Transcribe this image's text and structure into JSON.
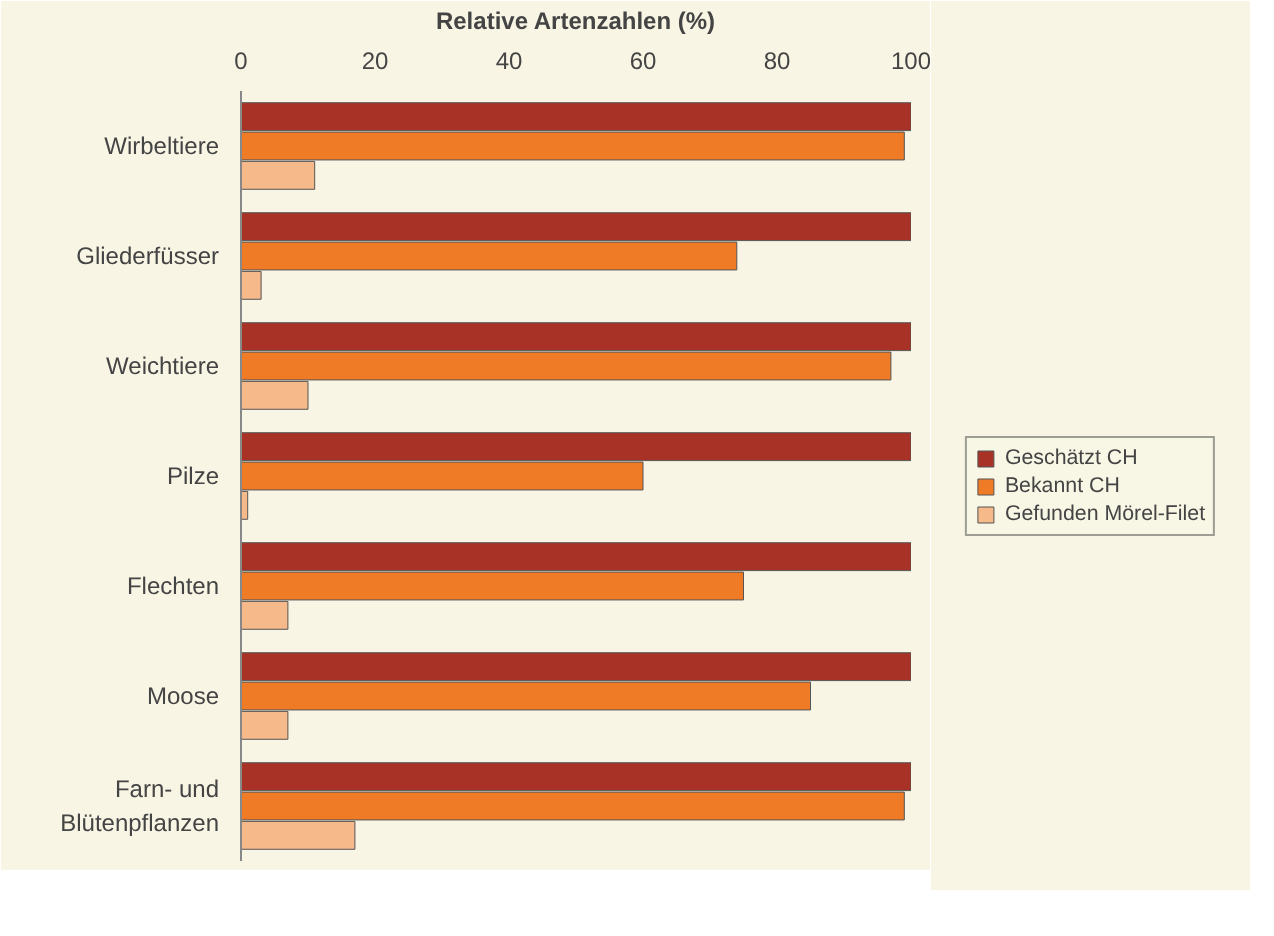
{
  "chart_data": {
    "type": "bar",
    "orientation": "horizontal",
    "xlabel": "Relative Artenzahlen (%)",
    "categories": [
      "Wirbeltiere",
      "Gliederfüsser",
      "Weichtiere",
      "Pilze",
      "Flechten",
      "Moose",
      "Farn- und\nBlütenpflanzen"
    ],
    "series": [
      {
        "name": "Geschätzt CH",
        "color": "#a93226",
        "values": [
          100,
          100,
          100,
          100,
          100,
          100,
          100
        ]
      },
      {
        "name": "Bekannt CH",
        "color": "#f07b26",
        "values": [
          99,
          74,
          97,
          60,
          75,
          85,
          99
        ]
      },
      {
        "name": "Gefunden Mörel-Filet",
        "color": "#f6b98a",
        "values": [
          11,
          3,
          10,
          1,
          7,
          7,
          17
        ]
      }
    ],
    "xlim": [
      0,
      100
    ],
    "xticks": [
      0,
      20,
      40,
      60,
      80,
      100
    ],
    "grid": false,
    "legend": "right"
  }
}
